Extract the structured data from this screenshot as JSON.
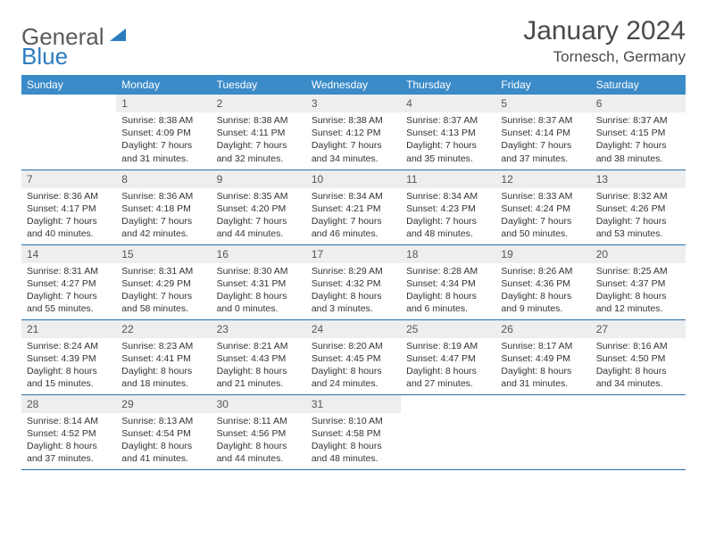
{
  "logo": {
    "text1": "General",
    "text2": "Blue"
  },
  "title": "January 2024",
  "location": "Tornesch, Germany",
  "colors": {
    "header_bg": "#3b8bc9",
    "header_text": "#ffffff",
    "daynum_bg": "#eceeef",
    "border": "#2b6fa8",
    "logo_gray": "#5a5a5a",
    "logo_blue": "#2b7bbf"
  },
  "weekdays": [
    "Sunday",
    "Monday",
    "Tuesday",
    "Wednesday",
    "Thursday",
    "Friday",
    "Saturday"
  ],
  "weeks": [
    [
      null,
      {
        "n": "1",
        "sr": "Sunrise: 8:38 AM",
        "ss": "Sunset: 4:09 PM",
        "dl": "Daylight: 7 hours and 31 minutes."
      },
      {
        "n": "2",
        "sr": "Sunrise: 8:38 AM",
        "ss": "Sunset: 4:11 PM",
        "dl": "Daylight: 7 hours and 32 minutes."
      },
      {
        "n": "3",
        "sr": "Sunrise: 8:38 AM",
        "ss": "Sunset: 4:12 PM",
        "dl": "Daylight: 7 hours and 34 minutes."
      },
      {
        "n": "4",
        "sr": "Sunrise: 8:37 AM",
        "ss": "Sunset: 4:13 PM",
        "dl": "Daylight: 7 hours and 35 minutes."
      },
      {
        "n": "5",
        "sr": "Sunrise: 8:37 AM",
        "ss": "Sunset: 4:14 PM",
        "dl": "Daylight: 7 hours and 37 minutes."
      },
      {
        "n": "6",
        "sr": "Sunrise: 8:37 AM",
        "ss": "Sunset: 4:15 PM",
        "dl": "Daylight: 7 hours and 38 minutes."
      }
    ],
    [
      {
        "n": "7",
        "sr": "Sunrise: 8:36 AM",
        "ss": "Sunset: 4:17 PM",
        "dl": "Daylight: 7 hours and 40 minutes."
      },
      {
        "n": "8",
        "sr": "Sunrise: 8:36 AM",
        "ss": "Sunset: 4:18 PM",
        "dl": "Daylight: 7 hours and 42 minutes."
      },
      {
        "n": "9",
        "sr": "Sunrise: 8:35 AM",
        "ss": "Sunset: 4:20 PM",
        "dl": "Daylight: 7 hours and 44 minutes."
      },
      {
        "n": "10",
        "sr": "Sunrise: 8:34 AM",
        "ss": "Sunset: 4:21 PM",
        "dl": "Daylight: 7 hours and 46 minutes."
      },
      {
        "n": "11",
        "sr": "Sunrise: 8:34 AM",
        "ss": "Sunset: 4:23 PM",
        "dl": "Daylight: 7 hours and 48 minutes."
      },
      {
        "n": "12",
        "sr": "Sunrise: 8:33 AM",
        "ss": "Sunset: 4:24 PM",
        "dl": "Daylight: 7 hours and 50 minutes."
      },
      {
        "n": "13",
        "sr": "Sunrise: 8:32 AM",
        "ss": "Sunset: 4:26 PM",
        "dl": "Daylight: 7 hours and 53 minutes."
      }
    ],
    [
      {
        "n": "14",
        "sr": "Sunrise: 8:31 AM",
        "ss": "Sunset: 4:27 PM",
        "dl": "Daylight: 7 hours and 55 minutes."
      },
      {
        "n": "15",
        "sr": "Sunrise: 8:31 AM",
        "ss": "Sunset: 4:29 PM",
        "dl": "Daylight: 7 hours and 58 minutes."
      },
      {
        "n": "16",
        "sr": "Sunrise: 8:30 AM",
        "ss": "Sunset: 4:31 PM",
        "dl": "Daylight: 8 hours and 0 minutes."
      },
      {
        "n": "17",
        "sr": "Sunrise: 8:29 AM",
        "ss": "Sunset: 4:32 PM",
        "dl": "Daylight: 8 hours and 3 minutes."
      },
      {
        "n": "18",
        "sr": "Sunrise: 8:28 AM",
        "ss": "Sunset: 4:34 PM",
        "dl": "Daylight: 8 hours and 6 minutes."
      },
      {
        "n": "19",
        "sr": "Sunrise: 8:26 AM",
        "ss": "Sunset: 4:36 PM",
        "dl": "Daylight: 8 hours and 9 minutes."
      },
      {
        "n": "20",
        "sr": "Sunrise: 8:25 AM",
        "ss": "Sunset: 4:37 PM",
        "dl": "Daylight: 8 hours and 12 minutes."
      }
    ],
    [
      {
        "n": "21",
        "sr": "Sunrise: 8:24 AM",
        "ss": "Sunset: 4:39 PM",
        "dl": "Daylight: 8 hours and 15 minutes."
      },
      {
        "n": "22",
        "sr": "Sunrise: 8:23 AM",
        "ss": "Sunset: 4:41 PM",
        "dl": "Daylight: 8 hours and 18 minutes."
      },
      {
        "n": "23",
        "sr": "Sunrise: 8:21 AM",
        "ss": "Sunset: 4:43 PM",
        "dl": "Daylight: 8 hours and 21 minutes."
      },
      {
        "n": "24",
        "sr": "Sunrise: 8:20 AM",
        "ss": "Sunset: 4:45 PM",
        "dl": "Daylight: 8 hours and 24 minutes."
      },
      {
        "n": "25",
        "sr": "Sunrise: 8:19 AM",
        "ss": "Sunset: 4:47 PM",
        "dl": "Daylight: 8 hours and 27 minutes."
      },
      {
        "n": "26",
        "sr": "Sunrise: 8:17 AM",
        "ss": "Sunset: 4:49 PM",
        "dl": "Daylight: 8 hours and 31 minutes."
      },
      {
        "n": "27",
        "sr": "Sunrise: 8:16 AM",
        "ss": "Sunset: 4:50 PM",
        "dl": "Daylight: 8 hours and 34 minutes."
      }
    ],
    [
      {
        "n": "28",
        "sr": "Sunrise: 8:14 AM",
        "ss": "Sunset: 4:52 PM",
        "dl": "Daylight: 8 hours and 37 minutes."
      },
      {
        "n": "29",
        "sr": "Sunrise: 8:13 AM",
        "ss": "Sunset: 4:54 PM",
        "dl": "Daylight: 8 hours and 41 minutes."
      },
      {
        "n": "30",
        "sr": "Sunrise: 8:11 AM",
        "ss": "Sunset: 4:56 PM",
        "dl": "Daylight: 8 hours and 44 minutes."
      },
      {
        "n": "31",
        "sr": "Sunrise: 8:10 AM",
        "ss": "Sunset: 4:58 PM",
        "dl": "Daylight: 8 hours and 48 minutes."
      },
      null,
      null,
      null
    ]
  ]
}
